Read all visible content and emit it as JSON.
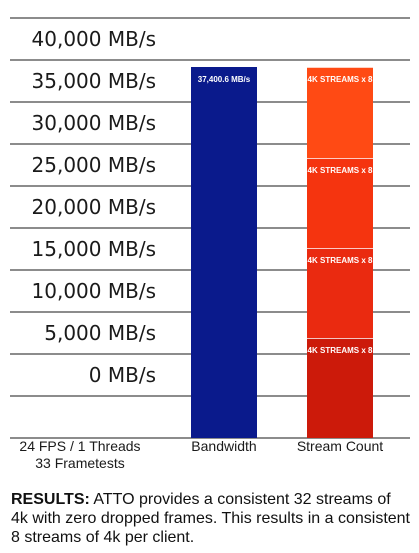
{
  "chart_data": {
    "type": "bar",
    "y_ticks": [
      "0 MB/s",
      "5,000 MB/s",
      "10,000 MB/s",
      "15,000 MB/s",
      "20,000 MB/s",
      "25,000 MB/s",
      "30,000 MB/s",
      "35,000 MB/s",
      "40,000 MB/s"
    ],
    "x_labels": [
      {
        "lines": [
          "24 FPS / 1 Threads",
          "33 Frametests"
        ]
      },
      {
        "lines": [
          "Bandwidth"
        ]
      },
      {
        "lines": [
          "Stream Count"
        ]
      }
    ],
    "bars": [
      {
        "category": "Bandwidth",
        "label": "37,400.6 MB/s",
        "color": "#0a1a8c"
      }
    ],
    "stacked": {
      "category": "Stream Count",
      "segments": [
        {
          "label": "4K STREAMS x 8",
          "color": "#cc1a0a"
        },
        {
          "label": "4K STREAMS x 8",
          "color": "#ea2a10"
        },
        {
          "label": "4K STREAMS x 8",
          "color": "#f5340f"
        },
        {
          "label": "4K STREAMS x 8",
          "color": "#ff4a14"
        }
      ]
    },
    "grid": true
  },
  "results": {
    "prefix": "RESULTS:",
    "text": " ATTO provides a consistent 32 streams of 4k with zero dropped frames. This results in a consistent 8 streams of 4k per client."
  }
}
